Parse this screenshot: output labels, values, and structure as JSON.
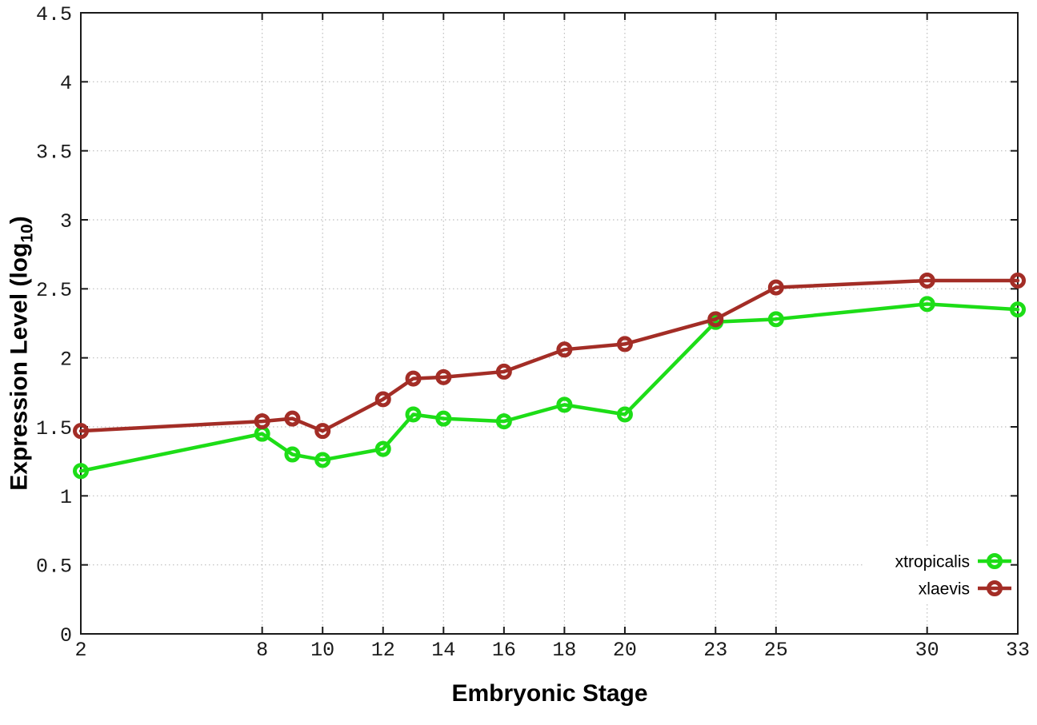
{
  "page": {
    "background": "#ffffff"
  },
  "chart_data": {
    "type": "line",
    "title": "",
    "xlabel": "Embryonic Stage",
    "ylabel": "Expression Level (log10)",
    "ylabel_parts": {
      "main": "Expression Level (log",
      "sub": "10",
      "end": ")"
    },
    "x": [
      2,
      8,
      9,
      10,
      12,
      13,
      14,
      16,
      18,
      20,
      23,
      25,
      30,
      33
    ],
    "series": [
      {
        "name": "xtropicalis",
        "color": "#1ddd17",
        "values": [
          1.18,
          1.45,
          1.3,
          1.26,
          1.34,
          1.59,
          1.56,
          1.54,
          1.66,
          1.59,
          2.26,
          2.28,
          2.39,
          2.35
        ]
      },
      {
        "name": "xlaevis",
        "color": "#a32d26",
        "values": [
          1.47,
          1.54,
          1.56,
          1.47,
          1.7,
          1.85,
          1.86,
          1.9,
          2.06,
          2.1,
          2.28,
          2.51,
          2.56,
          2.56
        ]
      }
    ],
    "xlim": [
      2,
      33
    ],
    "ylim": [
      0,
      4.5
    ],
    "xticks": [
      2,
      8,
      10,
      12,
      14,
      16,
      18,
      20,
      23,
      25,
      30,
      33
    ],
    "xtick_labels": [
      "2",
      "8",
      "10",
      "12",
      "14",
      "16",
      "18",
      "20",
      "23",
      "25",
      "30",
      "33"
    ],
    "yticks": [
      0,
      0.5,
      1,
      1.5,
      2,
      2.5,
      3,
      3.5,
      4,
      4.5
    ],
    "ytick_labels": [
      "0",
      "0.5",
      "1",
      "1.5",
      "2",
      "2.5",
      "3",
      "3.5",
      "4",
      "4.5"
    ],
    "grid": true,
    "legend_position": "bottom-right",
    "axis_color": "#1a1a1a",
    "grid_color": "#bdbdbd",
    "tick_label_color": "#1a1a1a",
    "marker": "open-circle"
  }
}
